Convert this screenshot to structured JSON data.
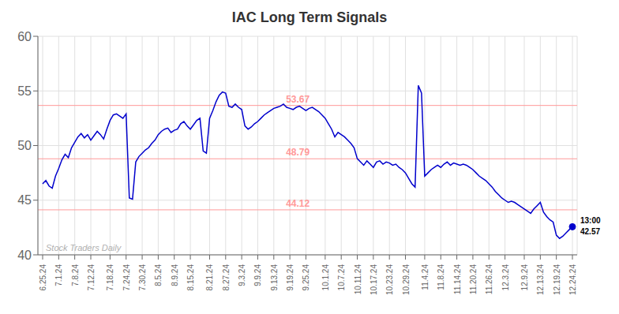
{
  "chart_data": {
    "type": "line",
    "title": "IAC Long Term Signals",
    "categories": [
      "6.25.24",
      null,
      null,
      null,
      null,
      "7.1.24",
      null,
      null,
      null,
      null,
      "7.8.24",
      null,
      null,
      null,
      null,
      "7.12.24",
      null,
      null,
      null,
      null,
      null,
      "7.18.24",
      null,
      null,
      null,
      null,
      "7.24.24",
      null,
      null,
      null,
      null,
      "7.30.24",
      null,
      null,
      null,
      null,
      "8.5.24",
      null,
      null,
      null,
      null,
      "8.9.24",
      null,
      null,
      null,
      null,
      "8.15.24",
      null,
      null,
      null,
      null,
      null,
      "8.21.24",
      null,
      null,
      null,
      null,
      "8.27.24",
      null,
      null,
      null,
      null,
      "9.3.24",
      null,
      null,
      null,
      null,
      "9.9.24",
      null,
      null,
      null,
      null,
      "9.13.24",
      null,
      null,
      null,
      null,
      "9.19.24",
      null,
      null,
      null,
      null,
      "9.25.24",
      null,
      null,
      null,
      null,
      null,
      "10.1.24",
      null,
      null,
      null,
      null,
      "10.7.24",
      null,
      null,
      null,
      null,
      "10.11.24",
      null,
      null,
      null,
      null,
      "10.17.24",
      null,
      null,
      null,
      null,
      "10.23.24",
      null,
      null,
      null,
      null,
      "10.29.24",
      null,
      null,
      null,
      null,
      null,
      "11.4.24",
      null,
      null,
      null,
      null,
      "11.8.24",
      null,
      null,
      null,
      null,
      "11.14.24",
      null,
      null,
      null,
      null,
      "11.20.24",
      null,
      null,
      null,
      null,
      "11.26.24",
      null,
      null,
      null,
      null,
      "12.3.24",
      null,
      null,
      null,
      null,
      null,
      "12.9.24",
      null,
      null,
      null,
      null,
      "12.13.24",
      null,
      null,
      null,
      null,
      "12.19.24",
      null,
      null,
      null,
      null,
      "12.24.24"
    ],
    "values": [
      46.5,
      46.8,
      46.3,
      46.1,
      47.2,
      47.9,
      48.7,
      49.2,
      48.9,
      49.8,
      50.3,
      50.8,
      51.1,
      50.7,
      51.0,
      50.5,
      50.9,
      51.3,
      51.0,
      50.6,
      51.5,
      52.3,
      52.8,
      52.9,
      52.7,
      52.5,
      52.9,
      45.2,
      45.1,
      48.5,
      49.0,
      49.3,
      49.6,
      49.8,
      50.2,
      50.5,
      51.0,
      51.3,
      51.5,
      51.6,
      51.2,
      51.4,
      51.5,
      52.0,
      52.2,
      51.8,
      51.5,
      51.9,
      52.3,
      52.5,
      49.5,
      49.3,
      52.5,
      53.2,
      54.0,
      54.6,
      54.9,
      54.8,
      53.6,
      53.5,
      53.8,
      53.5,
      53.3,
      51.8,
      51.5,
      51.7,
      52.0,
      52.2,
      52.5,
      52.8,
      53.0,
      53.2,
      53.4,
      53.5,
      53.6,
      53.8,
      53.5,
      53.4,
      53.3,
      53.5,
      53.6,
      53.4,
      53.2,
      53.4,
      53.5,
      53.3,
      53.1,
      52.8,
      52.5,
      52.0,
      51.5,
      50.8,
      51.2,
      51.0,
      50.8,
      50.5,
      50.2,
      49.8,
      48.8,
      48.5,
      48.2,
      48.6,
      48.3,
      48.0,
      48.5,
      48.6,
      48.3,
      48.5,
      48.4,
      48.2,
      48.3,
      48.0,
      47.8,
      47.5,
      47.0,
      46.5,
      46.2,
      55.5,
      54.8,
      47.2,
      47.5,
      47.8,
      48.0,
      48.2,
      48.0,
      48.3,
      48.5,
      48.2,
      48.4,
      48.3,
      48.2,
      48.3,
      48.2,
      48.0,
      47.8,
      47.5,
      47.2,
      47.0,
      46.8,
      46.5,
      46.2,
      45.8,
      45.5,
      45.2,
      45.0,
      44.8,
      44.9,
      44.8,
      44.6,
      44.4,
      44.2,
      44.0,
      43.8,
      44.2,
      44.5,
      44.8,
      43.9,
      43.5,
      43.2,
      43.0,
      41.8,
      41.5,
      41.7,
      42.0,
      42.3,
      42.57
    ],
    "color": "#0000cc",
    "ylim": [
      40,
      60
    ],
    "yticks": [
      40,
      45,
      50,
      55,
      60
    ],
    "grid": true,
    "reference_lines": [
      {
        "value": 53.67,
        "label": "53.67",
        "color": "#ff9999"
      },
      {
        "value": 48.79,
        "label": "48.79",
        "color": "#ff9999"
      },
      {
        "value": 44.12,
        "label": "44.12",
        "color": "#ff9999"
      }
    ],
    "point_label": [
      "13:00",
      "42.57"
    ],
    "watermark": "Stock Traders Daily"
  }
}
